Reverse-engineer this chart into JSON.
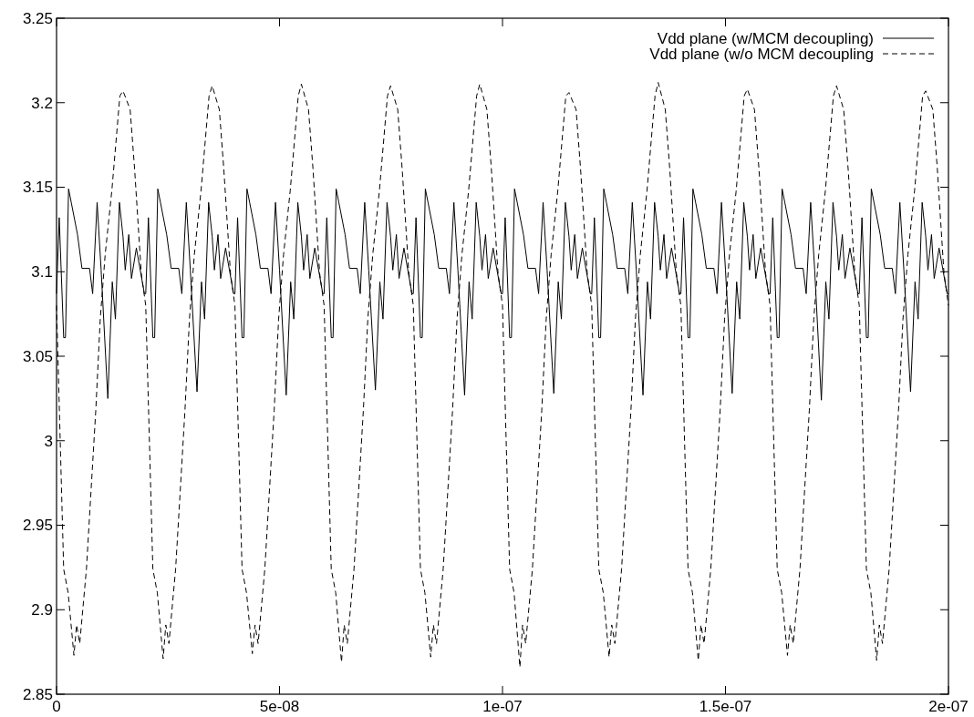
{
  "chart_data": {
    "type": "line",
    "legend": "top right",
    "grid": false,
    "xlim": [
      0,
      2e-07
    ],
    "xticks": [
      0,
      {
        "value": 5e-08,
        "label": "5e-08"
      },
      {
        "value": 1e-07,
        "label": "1e-07"
      },
      {
        "value": 1.5e-07,
        "label": "1.5e-07"
      },
      {
        "value": 2e-07,
        "label": "2e-07"
      }
    ],
    "ylim": [
      2.85,
      3.25
    ],
    "yticks": [
      2.85,
      2.9,
      2.95,
      3,
      3.05,
      3.1,
      3.15,
      3.2,
      3.25
    ],
    "series": [
      {
        "name": "Vdd plane (w/MCM decoupling)",
        "color": "#000000",
        "line_style": "solid",
        "x": [
          0.0,
          6e-10,
          1.6e-09,
          2e-09,
          2.7e-09,
          3.3e-09,
          4.7e-09,
          5.7e-09,
          7.4e-09,
          8.1e-09,
          9.1e-09,
          1e-08,
          1.15e-08,
          1.25e-08,
          1.32e-08,
          1.41e-08,
          1.49e-08,
          1.54e-08,
          1.62e-08,
          1.68e-08,
          1.79e-08,
          1.97e-08,
          2e-08,
          2.06e-08,
          2.16e-08,
          2.2e-08,
          2.27e-08,
          2.33e-08,
          2.47e-08,
          2.57e-08,
          2.74e-08,
          2.81e-08,
          2.91e-08,
          3e-08,
          3.15e-08,
          3.25e-08,
          3.32e-08,
          3.41e-08,
          3.49e-08,
          3.54e-08,
          3.62e-08,
          3.68e-08,
          3.79e-08,
          3.97e-08,
          4e-08,
          4.06e-08,
          4.16e-08,
          4.2e-08,
          4.27e-08,
          4.33e-08,
          4.47e-08,
          4.57e-08,
          4.74e-08,
          4.81e-08,
          4.91e-08,
          5e-08,
          5.15e-08,
          5.25e-08,
          5.32e-08,
          5.41e-08,
          5.49e-08,
          5.54e-08,
          5.62e-08,
          5.68e-08,
          5.79e-08,
          5.97e-08,
          6e-08,
          6.06e-08,
          6.16e-08,
          6.2e-08,
          6.27e-08,
          6.33e-08,
          6.47e-08,
          6.57e-08,
          6.74e-08,
          6.81e-08,
          6.91e-08,
          7e-08,
          7.15e-08,
          7.25e-08,
          7.32e-08,
          7.41e-08,
          7.49e-08,
          7.54e-08,
          7.62e-08,
          7.68e-08,
          7.79e-08,
          7.97e-08,
          8e-08,
          8.06e-08,
          8.16e-08,
          8.2e-08,
          8.27e-08,
          8.33e-08,
          8.47e-08,
          8.57e-08,
          8.74e-08,
          8.81e-08,
          8.91e-08,
          9e-08,
          9.15e-08,
          9.25e-08,
          9.32e-08,
          9.41e-08,
          9.49e-08,
          9.54e-08,
          9.62e-08,
          9.68e-08,
          9.79e-08,
          9.97e-08,
          1e-07,
          1.006e-07,
          1.016e-07,
          1.02e-07,
          1.027e-07,
          1.033e-07,
          1.047e-07,
          1.057e-07,
          1.074e-07,
          1.081e-07,
          1.091e-07,
          1.1e-07,
          1.115e-07,
          1.125e-07,
          1.132e-07,
          1.141e-07,
          1.149e-07,
          1.154e-07,
          1.162e-07,
          1.168e-07,
          1.179e-07,
          1.197e-07,
          1.2e-07,
          1.206e-07,
          1.216e-07,
          1.22e-07,
          1.227e-07,
          1.233e-07,
          1.247e-07,
          1.257e-07,
          1.274e-07,
          1.281e-07,
          1.291e-07,
          1.3e-07,
          1.315e-07,
          1.325e-07,
          1.332e-07,
          1.341e-07,
          1.349e-07,
          1.354e-07,
          1.362e-07,
          1.368e-07,
          1.379e-07,
          1.397e-07,
          1.4e-07,
          1.406e-07,
          1.416e-07,
          1.42e-07,
          1.427e-07,
          1.433e-07,
          1.447e-07,
          1.457e-07,
          1.474e-07,
          1.481e-07,
          1.491e-07,
          1.5e-07,
          1.515e-07,
          1.525e-07,
          1.532e-07,
          1.541e-07,
          1.549e-07,
          1.554e-07,
          1.562e-07,
          1.568e-07,
          1.579e-07,
          1.597e-07,
          1.6e-07,
          1.606e-07,
          1.616e-07,
          1.62e-07,
          1.627e-07,
          1.633e-07,
          1.647e-07,
          1.657e-07,
          1.674e-07,
          1.681e-07,
          1.691e-07,
          1.7e-07,
          1.715e-07,
          1.725e-07,
          1.732e-07,
          1.741e-07,
          1.749e-07,
          1.754e-07,
          1.762e-07,
          1.768e-07,
          1.779e-07,
          1.797e-07,
          1.8e-07,
          1.806e-07,
          1.816e-07,
          1.82e-07,
          1.827e-07,
          1.833e-07,
          1.847e-07,
          1.857e-07,
          1.874e-07,
          1.881e-07,
          1.891e-07,
          1.9e-07,
          1.915e-07,
          1.925e-07,
          1.932e-07,
          1.941e-07,
          1.949e-07,
          1.954e-07,
          1.962e-07,
          1.968e-07,
          1.979e-07,
          1.997e-07,
          2e-07
        ],
        "values": [
          3.087,
          3.132,
          3.061,
          3.061,
          3.149,
          3.141,
          3.122,
          3.102,
          3.102,
          3.087,
          3.141,
          3.101,
          3.025,
          3.094,
          3.072,
          3.141,
          3.121,
          3.101,
          3.122,
          3.096,
          3.114,
          3.087,
          3.087,
          3.132,
          3.061,
          3.061,
          3.149,
          3.141,
          3.122,
          3.102,
          3.102,
          3.087,
          3.141,
          3.101,
          3.029,
          3.094,
          3.072,
          3.141,
          3.121,
          3.101,
          3.122,
          3.096,
          3.114,
          3.087,
          3.087,
          3.132,
          3.061,
          3.061,
          3.149,
          3.141,
          3.122,
          3.102,
          3.102,
          3.087,
          3.141,
          3.101,
          3.027,
          3.094,
          3.072,
          3.141,
          3.121,
          3.101,
          3.122,
          3.096,
          3.114,
          3.087,
          3.087,
          3.132,
          3.061,
          3.061,
          3.149,
          3.141,
          3.122,
          3.102,
          3.102,
          3.087,
          3.141,
          3.101,
          3.03,
          3.094,
          3.072,
          3.141,
          3.121,
          3.101,
          3.122,
          3.096,
          3.114,
          3.087,
          3.087,
          3.132,
          3.061,
          3.061,
          3.149,
          3.141,
          3.122,
          3.102,
          3.102,
          3.087,
          3.141,
          3.101,
          3.027,
          3.094,
          3.072,
          3.141,
          3.121,
          3.101,
          3.122,
          3.096,
          3.114,
          3.087,
          3.087,
          3.132,
          3.061,
          3.061,
          3.149,
          3.141,
          3.122,
          3.102,
          3.102,
          3.087,
          3.141,
          3.101,
          3.028,
          3.094,
          3.072,
          3.141,
          3.121,
          3.101,
          3.122,
          3.096,
          3.114,
          3.087,
          3.087,
          3.132,
          3.061,
          3.061,
          3.149,
          3.141,
          3.122,
          3.102,
          3.102,
          3.087,
          3.141,
          3.101,
          3.027,
          3.094,
          3.072,
          3.141,
          3.121,
          3.101,
          3.122,
          3.096,
          3.114,
          3.087,
          3.087,
          3.132,
          3.061,
          3.061,
          3.149,
          3.141,
          3.122,
          3.102,
          3.102,
          3.087,
          3.141,
          3.101,
          3.028,
          3.094,
          3.072,
          3.141,
          3.121,
          3.101,
          3.122,
          3.096,
          3.114,
          3.087,
          3.087,
          3.132,
          3.061,
          3.061,
          3.149,
          3.141,
          3.122,
          3.102,
          3.102,
          3.087,
          3.141,
          3.101,
          3.024,
          3.094,
          3.072,
          3.141,
          3.121,
          3.101,
          3.122,
          3.096,
          3.114,
          3.087,
          3.087,
          3.132,
          3.061,
          3.061,
          3.149,
          3.141,
          3.122,
          3.102,
          3.102,
          3.087,
          3.141,
          3.101,
          3.029,
          3.094,
          3.072,
          3.141,
          3.121,
          3.101,
          3.122,
          3.096,
          3.114,
          3.087,
          3.087
        ]
      },
      {
        "name": "Vdd plane (w/o MCM decoupling",
        "color": "#000000",
        "line_style": "dashed",
        "x": [
          0.0,
          1.6e-09,
          2.6e-09,
          3.9e-09,
          4.5e-09,
          5.2e-09,
          6.7e-09,
          8.8e-09,
          9.8e-09,
          1.09e-08,
          1.24e-08,
          1.42e-08,
          1.49e-08,
          1.65e-08,
          1.75e-08,
          1.9e-08,
          2e-08,
          2.16e-08,
          2.26e-08,
          2.39e-08,
          2.45e-08,
          2.52e-08,
          2.67e-08,
          2.88e-08,
          2.98e-08,
          3.09e-08,
          3.24e-08,
          3.42e-08,
          3.49e-08,
          3.65e-08,
          3.75e-08,
          3.9e-08,
          4e-08,
          4.16e-08,
          4.26e-08,
          4.39e-08,
          4.45e-08,
          4.52e-08,
          4.67e-08,
          4.88e-08,
          4.98e-08,
          5.09e-08,
          5.24e-08,
          5.42e-08,
          5.49e-08,
          5.65e-08,
          5.75e-08,
          5.9e-08,
          6e-08,
          6.16e-08,
          6.26e-08,
          6.39e-08,
          6.45e-08,
          6.52e-08,
          6.67e-08,
          6.88e-08,
          6.98e-08,
          7.09e-08,
          7.24e-08,
          7.42e-08,
          7.49e-08,
          7.65e-08,
          7.75e-08,
          7.9e-08,
          8e-08,
          8.16e-08,
          8.26e-08,
          8.39e-08,
          8.45e-08,
          8.52e-08,
          8.67e-08,
          8.88e-08,
          8.98e-08,
          9.09e-08,
          9.24e-08,
          9.42e-08,
          9.49e-08,
          9.65e-08,
          9.75e-08,
          9.9e-08,
          1e-07,
          1.016e-07,
          1.026e-07,
          1.039e-07,
          1.045e-07,
          1.052e-07,
          1.067e-07,
          1.088e-07,
          1.098e-07,
          1.109e-07,
          1.124e-07,
          1.142e-07,
          1.149e-07,
          1.165e-07,
          1.175e-07,
          1.19e-07,
          1.2e-07,
          1.216e-07,
          1.226e-07,
          1.239e-07,
          1.245e-07,
          1.252e-07,
          1.267e-07,
          1.288e-07,
          1.298e-07,
          1.309e-07,
          1.324e-07,
          1.342e-07,
          1.349e-07,
          1.365e-07,
          1.375e-07,
          1.39e-07,
          1.4e-07,
          1.416e-07,
          1.426e-07,
          1.439e-07,
          1.445e-07,
          1.452e-07,
          1.467e-07,
          1.488e-07,
          1.498e-07,
          1.509e-07,
          1.524e-07,
          1.542e-07,
          1.549e-07,
          1.565e-07,
          1.575e-07,
          1.59e-07,
          1.6e-07,
          1.616e-07,
          1.626e-07,
          1.639e-07,
          1.645e-07,
          1.652e-07,
          1.667e-07,
          1.688e-07,
          1.698e-07,
          1.709e-07,
          1.724e-07,
          1.742e-07,
          1.749e-07,
          1.765e-07,
          1.775e-07,
          1.79e-07,
          1.8e-07,
          1.816e-07,
          1.826e-07,
          1.839e-07,
          1.845e-07,
          1.852e-07,
          1.867e-07,
          1.888e-07,
          1.898e-07,
          1.909e-07,
          1.924e-07,
          1.942e-07,
          1.949e-07,
          1.965e-07,
          1.975e-07,
          1.99e-07,
          2e-07
        ],
        "values": [
          3.08,
          2.924,
          2.91,
          2.873,
          2.891,
          2.88,
          2.924,
          3.018,
          3.072,
          3.11,
          3.148,
          3.204,
          3.207,
          3.196,
          3.161,
          3.099,
          3.08,
          2.924,
          2.91,
          2.871,
          2.891,
          2.88,
          2.924,
          3.018,
          3.072,
          3.11,
          3.148,
          3.204,
          3.21,
          3.196,
          3.161,
          3.099,
          3.08,
          2.924,
          2.91,
          2.874,
          2.891,
          2.88,
          2.924,
          3.018,
          3.072,
          3.11,
          3.148,
          3.204,
          3.211,
          3.196,
          3.161,
          3.099,
          3.08,
          2.924,
          2.91,
          2.869,
          2.891,
          2.88,
          2.924,
          3.018,
          3.072,
          3.11,
          3.148,
          3.204,
          3.21,
          3.196,
          3.161,
          3.099,
          3.08,
          2.924,
          2.91,
          2.872,
          2.891,
          2.88,
          2.924,
          3.018,
          3.072,
          3.11,
          3.148,
          3.204,
          3.211,
          3.196,
          3.161,
          3.099,
          3.08,
          2.924,
          2.91,
          2.866,
          2.891,
          2.88,
          2.924,
          3.018,
          3.072,
          3.11,
          3.148,
          3.204,
          3.206,
          3.196,
          3.161,
          3.099,
          3.08,
          2.924,
          2.91,
          2.872,
          2.891,
          2.88,
          2.924,
          3.018,
          3.072,
          3.11,
          3.148,
          3.204,
          3.212,
          3.196,
          3.161,
          3.099,
          3.08,
          2.924,
          2.91,
          2.87,
          2.891,
          2.88,
          2.924,
          3.018,
          3.072,
          3.11,
          3.148,
          3.204,
          3.208,
          3.196,
          3.161,
          3.099,
          3.08,
          2.924,
          2.91,
          2.873,
          2.891,
          2.88,
          2.924,
          3.018,
          3.072,
          3.11,
          3.148,
          3.204,
          3.21,
          3.196,
          3.161,
          3.099,
          3.08,
          2.924,
          2.91,
          2.87,
          2.891,
          2.88,
          2.924,
          3.018,
          3.072,
          3.11,
          3.148,
          3.204,
          3.207,
          3.196,
          3.161,
          3.099,
          3.08
        ]
      }
    ]
  }
}
